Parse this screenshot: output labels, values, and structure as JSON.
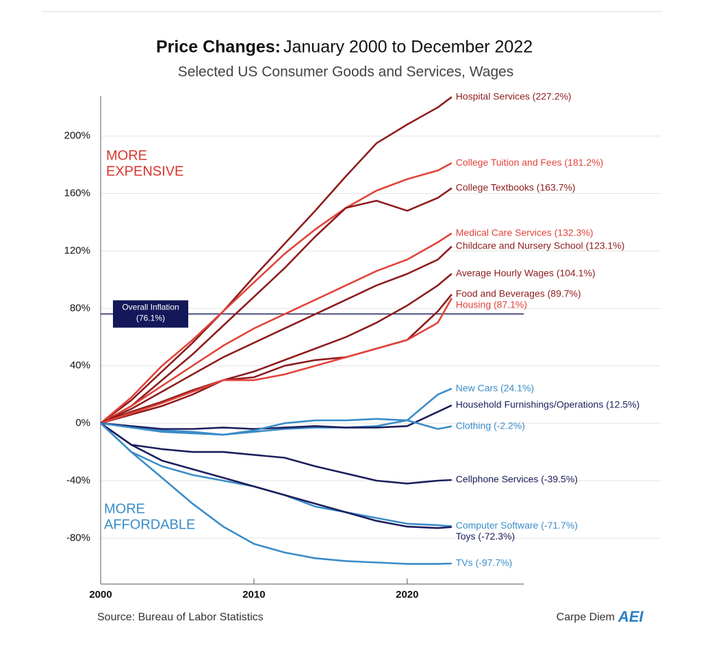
{
  "chart_data": {
    "type": "line",
    "title_lead": "Price Changes:",
    "title": "January 2000 to December 2022",
    "subtitle": "Selected US Consumer Goods and Services, Wages",
    "source": "Source: Bureau of Labor Statistics",
    "brand": "Carpe Diem",
    "brand_logo": "AEI",
    "annotations": [
      "MORE",
      "EXPENSIVE",
      "MORE",
      "AFFORDABLE"
    ],
    "reference_line": {
      "value": 76.1,
      "label": "Overall Inflation",
      "value_label": "(76.1%)"
    },
    "x": [
      2000,
      2002,
      2004,
      2006,
      2008,
      2010,
      2012,
      2014,
      2016,
      2018,
      2020,
      2022,
      2022.9
    ],
    "xlim": [
      2000,
      2027.6
    ],
    "xticks": [
      2000,
      2010,
      2020
    ],
    "ylim": [
      -112,
      228
    ],
    "yticks": [
      {
        "value": -80,
        "label": "-80%"
      },
      {
        "value": -40,
        "label": "-40%"
      },
      {
        "value": 0,
        "label": "0%"
      },
      {
        "value": 40,
        "label": "40%"
      },
      {
        "value": 80,
        "label": "80%"
      },
      {
        "value": 120,
        "label": "120%"
      },
      {
        "value": 160,
        "label": "160%"
      },
      {
        "value": 200,
        "label": "200%"
      }
    ],
    "grid": true,
    "series": [
      {
        "name": "Hospital Services (227.2%)",
        "color": "#8e1c1c",
        "values": [
          0,
          16,
          36,
          56,
          78,
          102,
          125,
          148,
          172,
          195,
          208,
          220,
          227.2
        ]
      },
      {
        "name": "College Tuition and Fees (181.2%)",
        "color": "#e2433a",
        "values": [
          0,
          18,
          40,
          58,
          78,
          98,
          118,
          135,
          150,
          162,
          170,
          176,
          181.2
        ]
      },
      {
        "name": "College Textbooks (163.7%)",
        "color": "#8e1c1c",
        "values": [
          0,
          12,
          30,
          48,
          68,
          88,
          108,
          130,
          150,
          155,
          148,
          157,
          163.7
        ]
      },
      {
        "name": "Medical Care Services (132.3%)",
        "color": "#e2433a",
        "values": [
          0,
          12,
          26,
          40,
          54,
          66,
          76,
          86,
          96,
          106,
          114,
          126,
          132.3
        ]
      },
      {
        "name": "Childcare and Nursery School (123.1%)",
        "color": "#8e1c1c",
        "values": [
          0,
          10,
          22,
          34,
          46,
          56,
          66,
          76,
          86,
          96,
          104,
          114,
          123.1
        ]
      },
      {
        "name": "Average Hourly Wages (104.1%)",
        "color": "#8e1c1c",
        "values": [
          0,
          8,
          15,
          23,
          30,
          36,
          44,
          52,
          60,
          70,
          82,
          96,
          104.1
        ]
      },
      {
        "name": "Food and Beverages (89.7%)",
        "color": "#8e1c1c",
        "values": [
          0,
          6,
          12,
          20,
          30,
          32,
          40,
          44,
          46,
          52,
          58,
          78,
          89.7
        ]
      },
      {
        "name": "Housing (87.1%)",
        "color": "#e2433a",
        "values": [
          0,
          7,
          14,
          22,
          30,
          30,
          34,
          40,
          46,
          52,
          58,
          70,
          87.1
        ]
      },
      {
        "name": "New Cars (24.1%)",
        "color": "#3a8cc8",
        "values": [
          0,
          -3,
          -5,
          -6,
          -8,
          -6,
          -4,
          -3,
          -3,
          -2,
          2,
          20,
          24.1
        ]
      },
      {
        "name": "Household Furnishings/Operations (12.5%)",
        "color": "#1b1f5c",
        "values": [
          0,
          -2,
          -4,
          -4,
          -3,
          -4,
          -3,
          -2,
          -3,
          -3,
          -2,
          8,
          12.5
        ]
      },
      {
        "name": "Clothing (-2.2%)",
        "color": "#3a8cc8",
        "values": [
          0,
          -3,
          -6,
          -7,
          -8,
          -5,
          0,
          2,
          2,
          3,
          2,
          -4,
          -2.2
        ]
      },
      {
        "name": "Cellphone Services (-39.5%)",
        "color": "#1b1f5c",
        "values": [
          0,
          -15,
          -18,
          -20,
          -20,
          -22,
          -24,
          -30,
          -35,
          -40,
          -42,
          -40,
          -39.5
        ]
      },
      {
        "name": "Computer Software (-71.7%)",
        "color": "#3a8cc8",
        "values": [
          0,
          -20,
          -30,
          -36,
          -40,
          -44,
          -50,
          -58,
          -62,
          -66,
          -70,
          -71,
          -71.7
        ]
      },
      {
        "name": "Toys (-72.3%)",
        "color": "#1b1f5c",
        "values": [
          0,
          -15,
          -26,
          -32,
          -38,
          -44,
          -50,
          -56,
          -62,
          -68,
          -72,
          -73,
          -72.3
        ]
      },
      {
        "name": "TVs (-97.7%)",
        "color": "#3a8cc8",
        "values": [
          0,
          -20,
          -38,
          -56,
          -72,
          -84,
          -90,
          -94,
          -96,
          -97,
          -98,
          -98,
          -97.7
        ]
      }
    ]
  }
}
